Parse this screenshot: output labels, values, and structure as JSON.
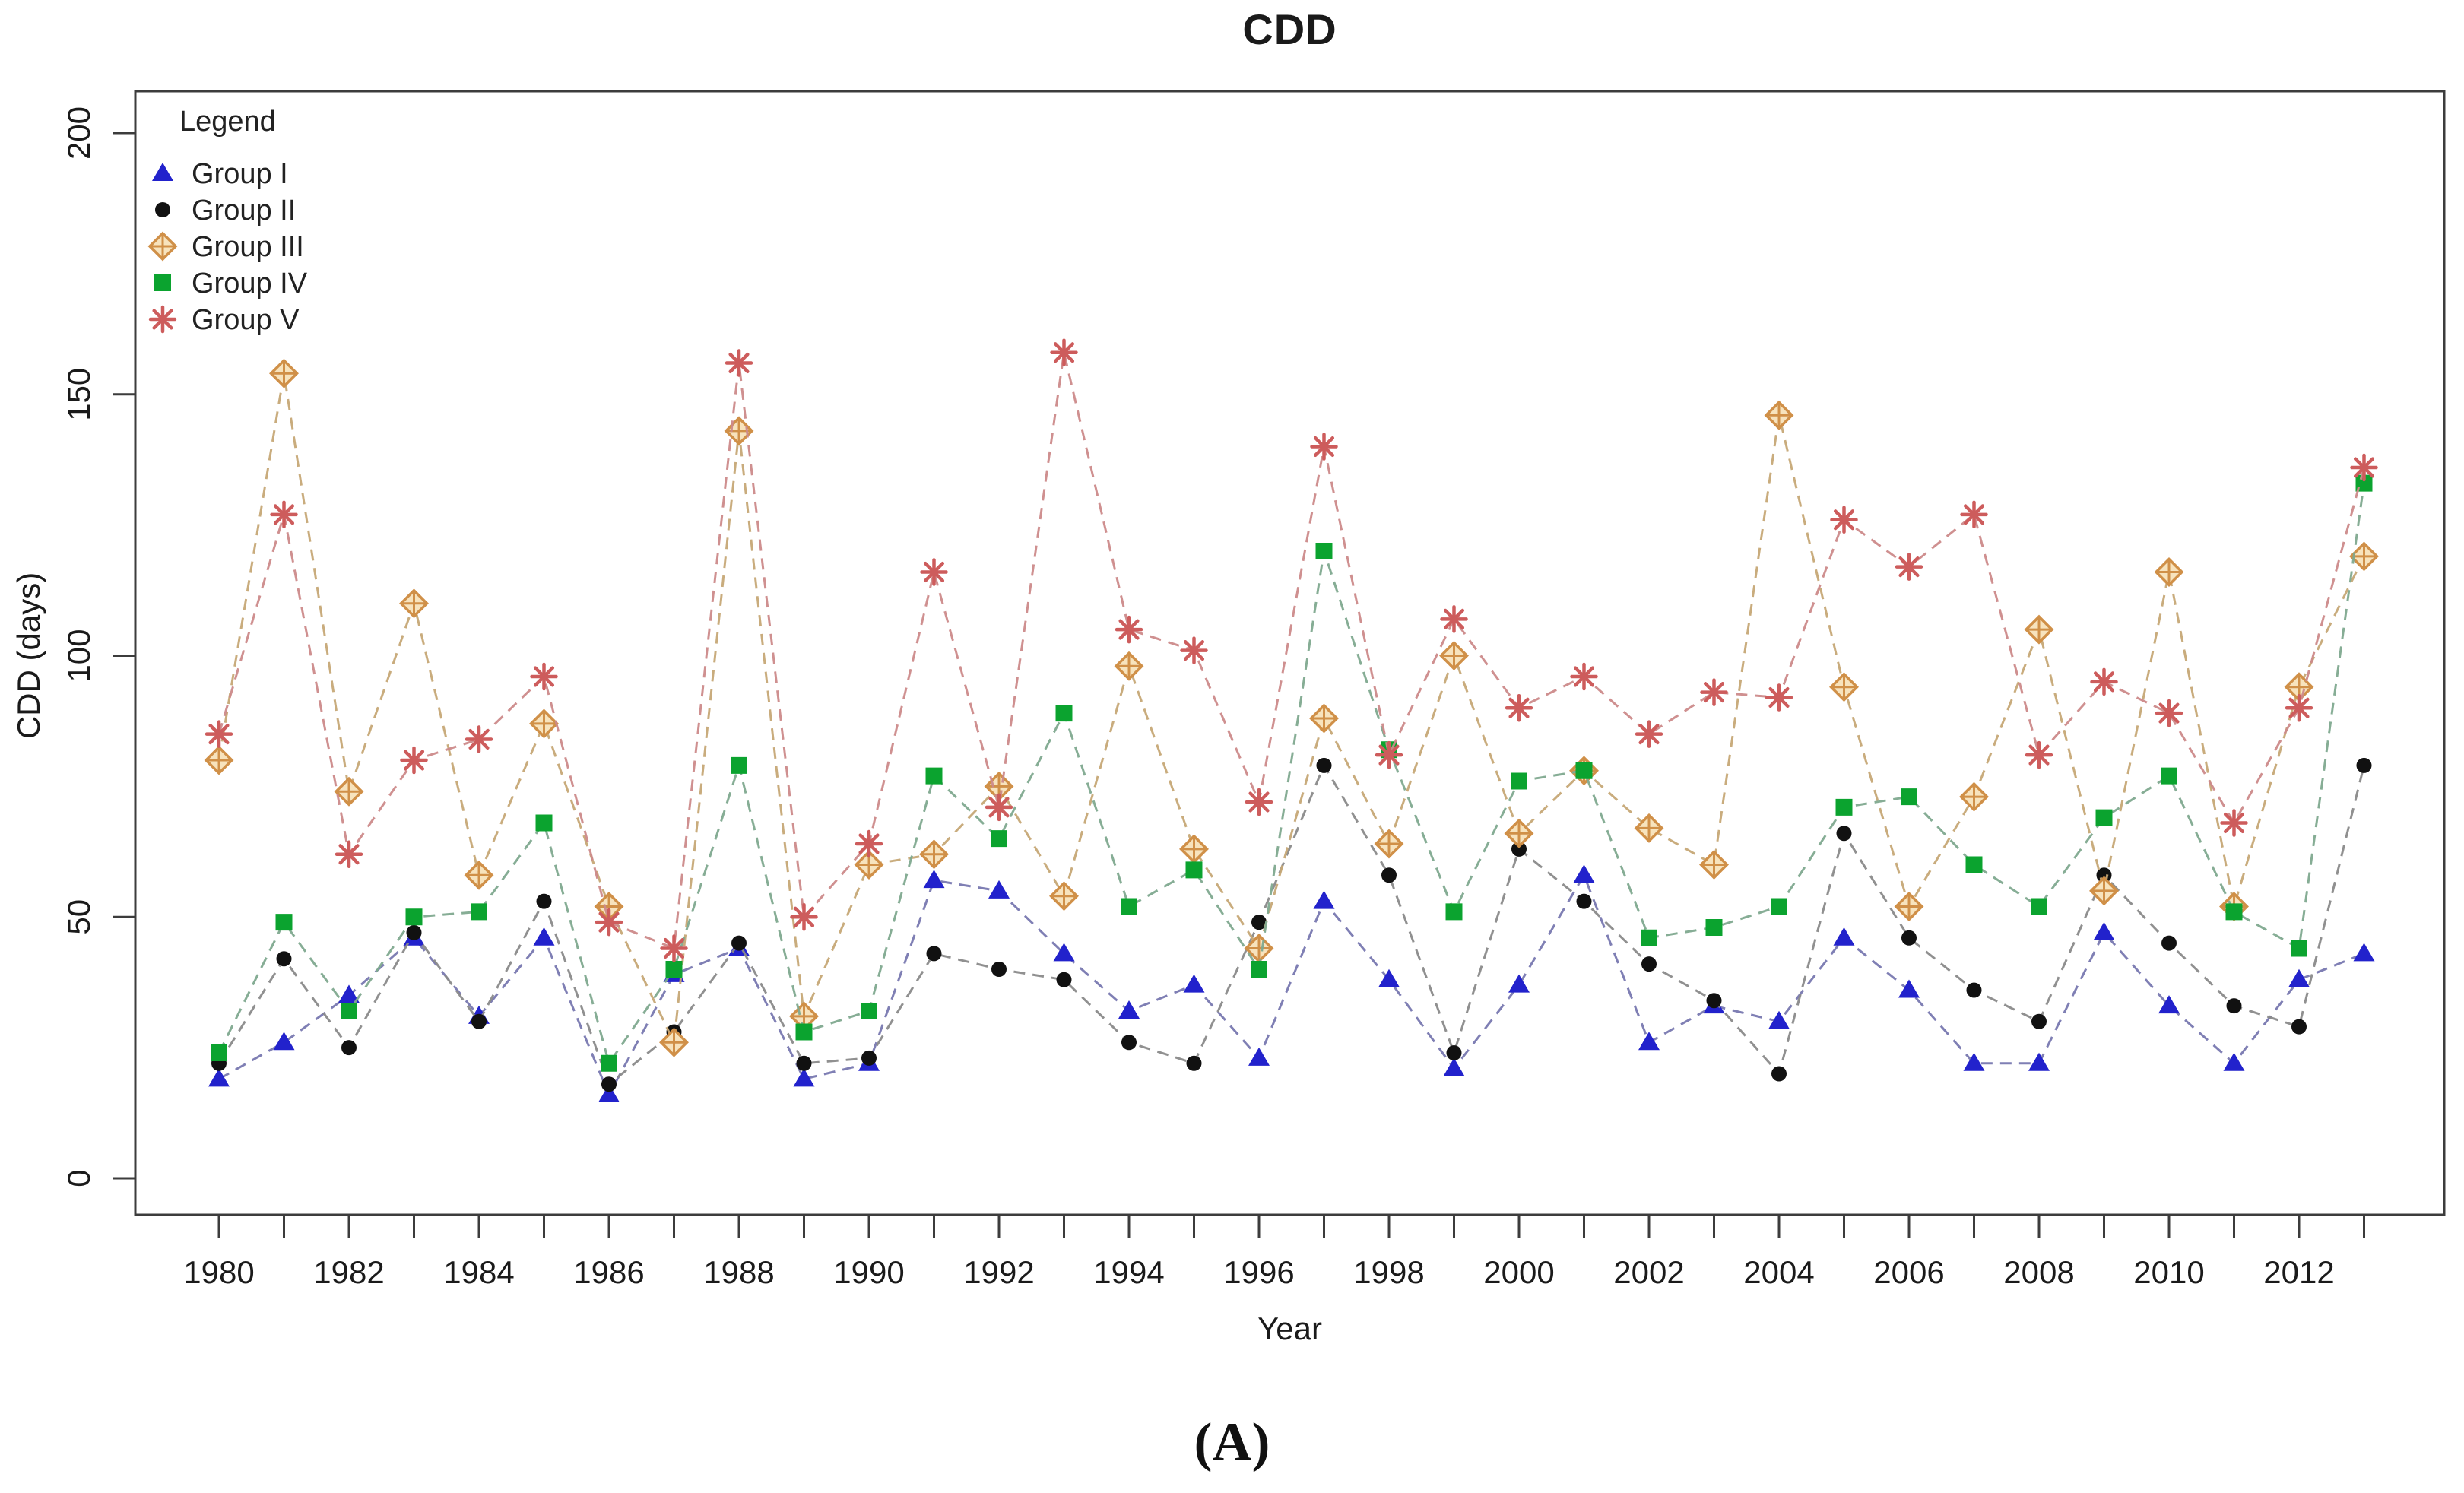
{
  "page": {
    "background": "#ffffff"
  },
  "caption": {
    "label": "(A)"
  },
  "chart_data": {
    "type": "line",
    "title": "CDD",
    "xlabel": "Year",
    "ylabel": "CDD (days)",
    "x": [
      1980,
      1981,
      1982,
      1983,
      1984,
      1985,
      1986,
      1987,
      1988,
      1989,
      1990,
      1991,
      1992,
      1993,
      1994,
      1995,
      1996,
      1997,
      1998,
      1999,
      2000,
      2001,
      2002,
      2003,
      2004,
      2005,
      2006,
      2007,
      2008,
      2009,
      2010,
      2011,
      2012,
      2013
    ],
    "x_labeled_ticks": [
      1980,
      1982,
      1984,
      1986,
      1988,
      1990,
      1992,
      1994,
      1996,
      1998,
      2000,
      2002,
      2004,
      2006,
      2008,
      2010,
      2012
    ],
    "ylim": [
      0,
      200
    ],
    "y_ticks": [
      0,
      50,
      100,
      150,
      200
    ],
    "grid": false,
    "legend": {
      "title": "Legend",
      "position": "top-left"
    },
    "axis_color": "#3c3c3c",
    "series": [
      {
        "name": "Group I",
        "marker": "triangle",
        "marker_color": "#2222cc",
        "line_color": "#7878b0",
        "values": [
          19,
          26,
          35,
          46,
          31,
          46,
          16,
          39,
          44,
          19,
          22,
          57,
          55,
          43,
          32,
          37,
          23,
          53,
          38,
          21,
          37,
          58,
          26,
          33,
          30,
          46,
          36,
          22,
          22,
          47,
          33,
          22,
          38,
          43
        ]
      },
      {
        "name": "Group II",
        "marker": "circle",
        "marker_color": "#111111",
        "line_color": "#8a8a8a",
        "values": [
          22,
          42,
          25,
          47,
          30,
          53,
          18,
          28,
          45,
          22,
          23,
          43,
          40,
          38,
          26,
          22,
          49,
          79,
          58,
          24,
          63,
          53,
          41,
          34,
          20,
          66,
          46,
          36,
          30,
          58,
          45,
          33,
          29,
          79
        ]
      },
      {
        "name": "Group III",
        "marker": "diamond-plus",
        "marker_color": "#d09048",
        "marker_fill": "#f7e3bd",
        "line_color": "#c6a876",
        "values": [
          80,
          154,
          74,
          110,
          58,
          87,
          52,
          26,
          143,
          31,
          60,
          62,
          75,
          54,
          98,
          63,
          44,
          88,
          64,
          100,
          66,
          78,
          67,
          60,
          146,
          94,
          52,
          73,
          105,
          55,
          116,
          52,
          94,
          119
        ]
      },
      {
        "name": "Group IV",
        "marker": "square",
        "marker_color": "#0ba32f",
        "line_color": "#7fa98f",
        "values": [
          24,
          49,
          32,
          50,
          51,
          68,
          22,
          40,
          79,
          28,
          32,
          77,
          65,
          89,
          52,
          59,
          40,
          120,
          82,
          51,
          76,
          78,
          46,
          48,
          52,
          71,
          73,
          60,
          52,
          69,
          77,
          51,
          44,
          133
        ]
      },
      {
        "name": "Group V",
        "marker": "asterisk",
        "marker_color": "#cd5c5c",
        "line_color": "#cc8a8a",
        "values": [
          85,
          127,
          62,
          80,
          84,
          96,
          49,
          44,
          156,
          50,
          64,
          116,
          71,
          158,
          105,
          101,
          72,
          140,
          81,
          107,
          90,
          96,
          85,
          93,
          92,
          126,
          117,
          127,
          81,
          95,
          89,
          68,
          90,
          136
        ]
      }
    ]
  }
}
